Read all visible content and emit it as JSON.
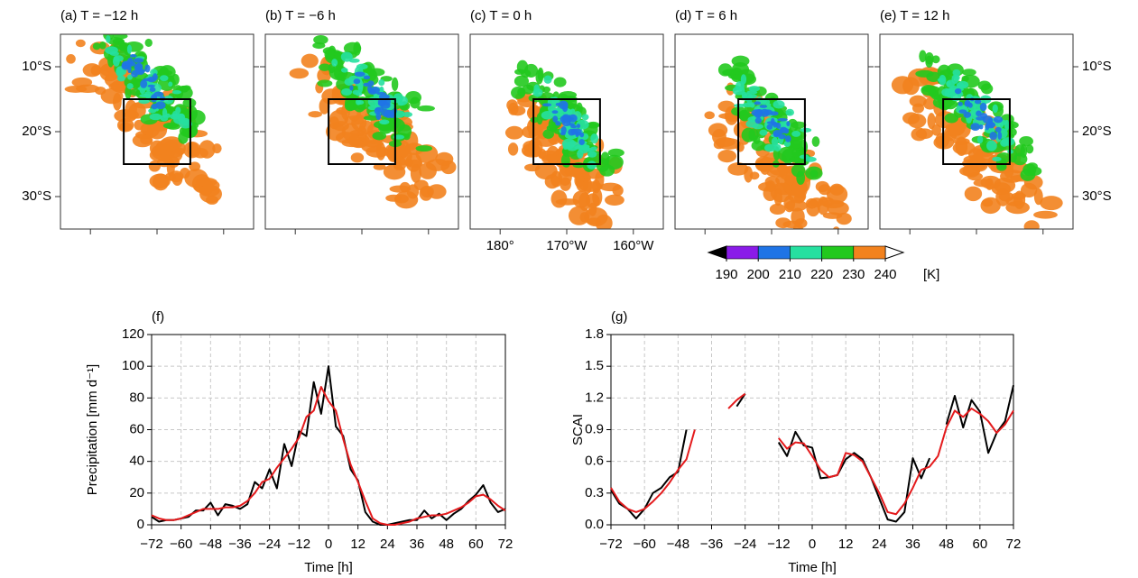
{
  "chart_data": [
    {
      "type": "map",
      "panels": [
        "(a) T = −12 h",
        "(b) T = −6 h",
        "(c) T = 0 h",
        "(d) T = 6 h",
        "(e) T = 12 h"
      ],
      "xlim": [
        175.5,
        204.5
      ],
      "xticks": [
        {
          "value": 180,
          "label": "180°"
        },
        {
          "value": 190,
          "label": "170°W"
        },
        {
          "value": 200,
          "label": "160°W"
        }
      ],
      "ylim": [
        -35,
        -5
      ],
      "yticks": [
        {
          "value": -10,
          "label": "10°S"
        },
        {
          "value": -20,
          "label": "20°S"
        },
        {
          "value": -30,
          "label": "30°S"
        }
      ]
    },
    {
      "type": "colorbar",
      "clim": [
        190,
        240
      ],
      "ticks": [
        190,
        200,
        210,
        220,
        230,
        240
      ],
      "unit": "[K]",
      "colors": [
        "#8a1be8",
        "#1f74e6",
        "#26e0a0",
        "#22c91e",
        "#f2821e"
      ],
      "extend_colors": [
        "#000000",
        "#ffffff"
      ]
    },
    {
      "type": "line",
      "panel": "(f)",
      "xlabel": "Time [h]",
      "ylabel": "Precipitation [mm d⁻¹]",
      "x": [
        -72,
        -69,
        -66,
        -63,
        -60,
        -57,
        -54,
        -51,
        -48,
        -45,
        -42,
        -39,
        -36,
        -33,
        -30,
        -27,
        -24,
        -21,
        -18,
        -15,
        -12,
        -9,
        -6,
        -3,
        0,
        3,
        6,
        9,
        12,
        15,
        18,
        21,
        24,
        27,
        30,
        33,
        36,
        39,
        42,
        45,
        48,
        51,
        54,
        57,
        60,
        63,
        66,
        69,
        72
      ],
      "xlim": [
        -72,
        72
      ],
      "xticks": [
        {
          "value": -72,
          "label": "−72"
        },
        {
          "value": -60,
          "label": "−60"
        },
        {
          "value": -48,
          "label": "−48"
        },
        {
          "value": -36,
          "label": "−36"
        },
        {
          "value": -24,
          "label": "−24"
        },
        {
          "value": -12,
          "label": "−12"
        },
        0,
        12,
        24,
        36,
        48,
        60,
        72
      ],
      "ylim": [
        0,
        120
      ],
      "yticks": [
        0,
        20,
        40,
        60,
        80,
        100,
        120
      ],
      "grid": true,
      "series": [
        {
          "color": "#000000",
          "values": [
            5,
            2,
            3,
            3,
            4,
            5,
            9,
            9,
            14,
            6,
            13,
            12,
            10,
            13,
            27,
            23,
            35,
            23,
            51,
            37,
            59,
            56,
            90,
            70,
            100,
            62,
            56,
            35,
            28,
            8,
            2,
            0,
            0,
            1,
            2,
            3,
            3,
            9,
            4,
            7,
            3,
            7,
            10,
            15,
            19,
            25,
            14,
            8,
            10
          ]
        },
        {
          "color": "#e41a1c",
          "values": [
            6,
            4,
            3,
            3,
            4,
            6,
            8,
            10,
            10,
            10,
            11,
            11,
            12,
            15,
            20,
            27,
            29,
            36,
            42,
            48,
            55,
            68,
            72,
            87,
            78,
            72,
            54,
            38,
            27,
            15,
            4,
            1,
            0,
            0,
            1,
            2,
            4,
            5,
            6,
            6,
            7,
            9,
            11,
            14,
            18,
            19,
            16,
            12,
            9
          ]
        }
      ]
    },
    {
      "type": "line",
      "panel": "(g)",
      "xlabel": "Time [h]",
      "ylabel": "SCAI",
      "x": [
        -72,
        -69,
        -66,
        -63,
        -60,
        -57,
        -54,
        -51,
        -48,
        -45,
        -42,
        -39,
        -36,
        -33,
        -30,
        -27,
        -24,
        -21,
        -18,
        -15,
        -12,
        -9,
        -6,
        -3,
        0,
        3,
        6,
        9,
        12,
        15,
        18,
        21,
        24,
        27,
        30,
        33,
        36,
        39,
        42,
        45,
        48,
        51,
        54,
        57,
        60,
        63,
        66,
        69,
        72
      ],
      "xlim": [
        -72,
        72
      ],
      "xticks": [
        {
          "value": -72,
          "label": "−72"
        },
        {
          "value": -60,
          "label": "−60"
        },
        {
          "value": -48,
          "label": "−48"
        },
        {
          "value": -36,
          "label": "−36"
        },
        {
          "value": -24,
          "label": "−24"
        },
        {
          "value": -12,
          "label": "−12"
        },
        0,
        12,
        24,
        36,
        48,
        60,
        72
      ],
      "ylim": [
        0,
        1.8
      ],
      "yticks": [
        {
          "value": 0,
          "label": "0.0"
        },
        0.3,
        0.6,
        0.9,
        1.2,
        1.5,
        1.8
      ],
      "grid": true,
      "series": [
        {
          "color": "#000000",
          "values": [
            0.33,
            0.2,
            0.15,
            0.06,
            0.15,
            0.3,
            0.35,
            0.45,
            0.5,
            0.9,
            null,
            null,
            null,
            null,
            null,
            1.12,
            1.24,
            null,
            null,
            null,
            0.78,
            0.65,
            0.88,
            0.75,
            0.73,
            0.44,
            0.45,
            0.47,
            0.62,
            0.68,
            0.62,
            0.45,
            0.25,
            0.05,
            0.03,
            0.12,
            0.63,
            0.44,
            0.63,
            null,
            0.95,
            1.22,
            0.92,
            1.18,
            1.07,
            0.68,
            0.87,
            0.98,
            1.32
          ]
        },
        {
          "color": "#e41a1c",
          "values": [
            0.35,
            0.22,
            0.15,
            0.12,
            0.15,
            0.22,
            0.3,
            0.4,
            0.52,
            0.62,
            0.9,
            null,
            null,
            null,
            1.1,
            1.18,
            1.24,
            null,
            null,
            null,
            0.82,
            0.72,
            0.78,
            0.77,
            0.65,
            0.52,
            0.45,
            0.47,
            0.68,
            0.66,
            0.6,
            0.45,
            0.3,
            0.12,
            0.1,
            0.2,
            0.35,
            0.52,
            0.55,
            0.65,
            0.92,
            1.08,
            1.02,
            1.1,
            1.05,
            0.98,
            0.87,
            0.95,
            1.08
          ]
        }
      ]
    }
  ]
}
